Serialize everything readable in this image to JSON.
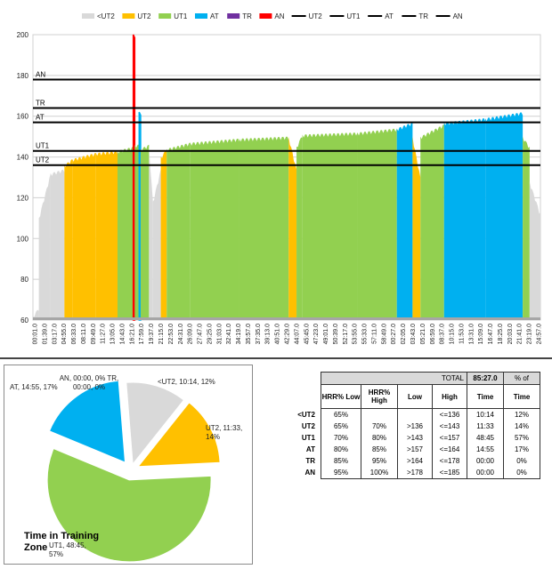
{
  "chart_data": [
    {
      "type": "area",
      "title": "",
      "xlabel": "",
      "ylabel": "",
      "ylim": [
        60,
        200
      ],
      "yticks": [
        60,
        80,
        100,
        120,
        140,
        160,
        180,
        200
      ],
      "legend": {
        "placement": "top",
        "entries": [
          {
            "name": "<UT2",
            "color": "#d9d9d9",
            "kind": "patch"
          },
          {
            "name": "UT2",
            "color": "#ffc000",
            "kind": "patch"
          },
          {
            "name": "UT1",
            "color": "#92d050",
            "kind": "patch"
          },
          {
            "name": "AT",
            "color": "#00b0f0",
            "kind": "patch"
          },
          {
            "name": "TR",
            "color": "#7030a0",
            "kind": "patch"
          },
          {
            "name": "AN",
            "color": "#ff0000",
            "kind": "patch"
          },
          {
            "name": "UT2",
            "color": "#000000",
            "kind": "line"
          },
          {
            "name": "UT1",
            "color": "#000000",
            "kind": "line"
          },
          {
            "name": "AT",
            "color": "#000000",
            "kind": "line"
          },
          {
            "name": "TR",
            "color": "#000000",
            "kind": "line"
          },
          {
            "name": "AN",
            "color": "#000000",
            "kind": "line"
          }
        ]
      },
      "thresholds": [
        {
          "name": "AN",
          "value": 178
        },
        {
          "name": "TR",
          "value": 164
        },
        {
          "name": "AT",
          "value": 157
        },
        {
          "name": "UT1",
          "value": 143
        },
        {
          "name": "UT2",
          "value": 136
        }
      ],
      "x_tick_labels": [
        "00:01.0",
        "01:39.0",
        "03:17.0",
        "04:55.0",
        "06:33.0",
        "08:11.0",
        "09:49.0",
        "11:27.0",
        "13:05.0",
        "14:43.0",
        "16:21.0",
        "17:59.0",
        "19:37.0",
        "21:15.0",
        "22:53.0",
        "24:31.0",
        "26:09.0",
        "27:47.0",
        "29:25.0",
        "31:03.0",
        "32:41.0",
        "34:19.0",
        "35:57.0",
        "37:35.0",
        "39:13.0",
        "40:51.0",
        "42:29.0",
        "44:07.0",
        "45:45.0",
        "47:23.0",
        "49:01.0",
        "50:39.0",
        "52:17.0",
        "53:55.0",
        "55:33.0",
        "57:11.0",
        "58:49.0",
        "00:27.0",
        "02:05.0",
        "03:43.0",
        "05:21.0",
        "06:59.0",
        "08:37.0",
        "10:15.0",
        "11:53.0",
        "13:31.0",
        "15:09.0",
        "16:47.0",
        "18:25.0",
        "20:03.0",
        "21:41.0",
        "23:19.0",
        "24:57.0"
      ],
      "segments": [
        {
          "from": 0,
          "to": 0.6,
          "zone": "<UT2",
          "hr_start": 62,
          "hr_end": 66
        },
        {
          "from": 0.6,
          "to": 1.8,
          "zone": "<UT2",
          "hr_start": 110,
          "hr_end": 132
        },
        {
          "from": 1.8,
          "to": 3.2,
          "zone": "<UT2",
          "hr_start": 132,
          "hr_end": 134
        },
        {
          "from": 3.2,
          "to": 4.0,
          "zone": "UT2",
          "hr_start": 136,
          "hr_end": 139
        },
        {
          "from": 4.0,
          "to": 6.4,
          "zone": "UT2",
          "hr_start": 139,
          "hr_end": 142
        },
        {
          "from": 6.4,
          "to": 8.6,
          "zone": "UT2",
          "hr_start": 142,
          "hr_end": 143
        },
        {
          "from": 8.6,
          "to": 10.2,
          "zone": "UT1",
          "hr_start": 143,
          "hr_end": 145
        },
        {
          "from": 10.2,
          "to": 10.35,
          "zone": "AN",
          "hr_start": 200,
          "hr_end": 200
        },
        {
          "from": 10.35,
          "to": 10.8,
          "zone": "UT1",
          "hr_start": 146,
          "hr_end": 146
        },
        {
          "from": 10.8,
          "to": 10.95,
          "zone": "AT",
          "hr_start": 162,
          "hr_end": 162
        },
        {
          "from": 10.95,
          "to": 11.8,
          "zone": "UT1",
          "hr_start": 144,
          "hr_end": 146
        },
        {
          "from": 11.8,
          "to": 12.2,
          "zone": "<UT2",
          "hr_start": 145,
          "hr_end": 118
        },
        {
          "from": 12.2,
          "to": 13.0,
          "zone": "<UT2",
          "hr_start": 118,
          "hr_end": 134
        },
        {
          "from": 13.0,
          "to": 13.6,
          "zone": "UT2",
          "hr_start": 140,
          "hr_end": 144
        },
        {
          "from": 13.6,
          "to": 16.0,
          "zone": "UT1",
          "hr_start": 144,
          "hr_end": 147
        },
        {
          "from": 16.0,
          "to": 21.0,
          "zone": "UT1",
          "hr_start": 147,
          "hr_end": 149
        },
        {
          "from": 21.0,
          "to": 26.0,
          "zone": "UT1",
          "hr_start": 149,
          "hr_end": 150
        },
        {
          "from": 26.0,
          "to": 26.8,
          "zone": "UT2",
          "hr_start": 150,
          "hr_end": 134
        },
        {
          "from": 26.8,
          "to": 27.4,
          "zone": "UT1",
          "hr_start": 145,
          "hr_end": 151
        },
        {
          "from": 27.4,
          "to": 33.0,
          "zone": "UT1",
          "hr_start": 151,
          "hr_end": 152
        },
        {
          "from": 33.0,
          "to": 37.0,
          "zone": "UT1",
          "hr_start": 152,
          "hr_end": 154
        },
        {
          "from": 37.0,
          "to": 38.6,
          "zone": "AT",
          "hr_start": 154,
          "hr_end": 157
        },
        {
          "from": 38.6,
          "to": 39.4,
          "zone": "UT2",
          "hr_start": 150,
          "hr_end": 130
        },
        {
          "from": 39.4,
          "to": 41.8,
          "zone": "UT1",
          "hr_start": 150,
          "hr_end": 156
        },
        {
          "from": 41.8,
          "to": 46.0,
          "zone": "AT",
          "hr_start": 157,
          "hr_end": 159
        },
        {
          "from": 46.0,
          "to": 49.8,
          "zone": "AT",
          "hr_start": 159,
          "hr_end": 162
        },
        {
          "from": 49.8,
          "to": 50.5,
          "zone": "UT1",
          "hr_start": 150,
          "hr_end": 145
        },
        {
          "from": 50.5,
          "to": 51.6,
          "zone": "<UT2",
          "hr_start": 128,
          "hr_end": 112
        }
      ],
      "x_range": [
        0,
        51.6
      ]
    },
    {
      "type": "pie",
      "title": "Time in Training Zone",
      "slices": [
        {
          "name": "<UT2",
          "time": "10:14",
          "percent": 12,
          "value": 10.23,
          "color": "#d9d9d9",
          "label": "<UT2, 10:14, 12%",
          "explode": 0.08
        },
        {
          "name": "UT2",
          "time": "11:33",
          "percent": 14,
          "value": 11.55,
          "color": "#ffc000",
          "label": "UT2, 11:33, 14%",
          "explode": 0.1
        },
        {
          "name": "UT1",
          "time": "48:45",
          "percent": 57,
          "value": 48.75,
          "color": "#92d050",
          "label": "UT1, 48:45, 57%",
          "explode": 0.12
        },
        {
          "name": "AT",
          "time": "14:55",
          "percent": 17,
          "value": 14.92,
          "color": "#00b0f0",
          "label": "AT, 14:55, 17%",
          "explode": 0.12
        },
        {
          "name": "TR",
          "time": "00:00",
          "percent": 0,
          "value": 0,
          "color": "#7030a0",
          "label": "TR, 00:00, 0%",
          "explode": 0
        },
        {
          "name": "AN",
          "time": "00:00",
          "percent": 0,
          "value": 0,
          "color": "#ff0000",
          "label": "AN, 00:00, 0%",
          "explode": 0
        }
      ]
    },
    {
      "type": "table",
      "total_label": "TOTAL",
      "total_time": "85:27.0",
      "pct_header": "% of",
      "headers": [
        "HRR% Low",
        "HRR% High",
        "Low",
        "High",
        "Time",
        "Time"
      ],
      "rows": [
        {
          "zone": "<UT2",
          "hrr_low": "65%",
          "hrr_high": "",
          "low": "",
          "high": "<=136",
          "time": "10:14",
          "pct": "12%"
        },
        {
          "zone": "UT2",
          "hrr_low": "65%",
          "hrr_high": "70%",
          "low": ">136",
          "high": "<=143",
          "time": "11:33",
          "pct": "14%"
        },
        {
          "zone": "UT1",
          "hrr_low": "70%",
          "hrr_high": "80%",
          "low": ">143",
          "high": "<=157",
          "time": "48:45",
          "pct": "57%"
        },
        {
          "zone": "AT",
          "hrr_low": "80%",
          "hrr_high": "85%",
          "low": ">157",
          "high": "<=164",
          "time": "14:55",
          "pct": "17%"
        },
        {
          "zone": "TR",
          "hrr_low": "85%",
          "hrr_high": "95%",
          "low": ">164",
          "high": "<=178",
          "time": "00:00",
          "pct": "0%"
        },
        {
          "zone": "AN",
          "hrr_low": "95%",
          "hrr_high": "100%",
          "low": ">178",
          "high": "<=185",
          "time": "00:00",
          "pct": "0%"
        }
      ]
    }
  ]
}
